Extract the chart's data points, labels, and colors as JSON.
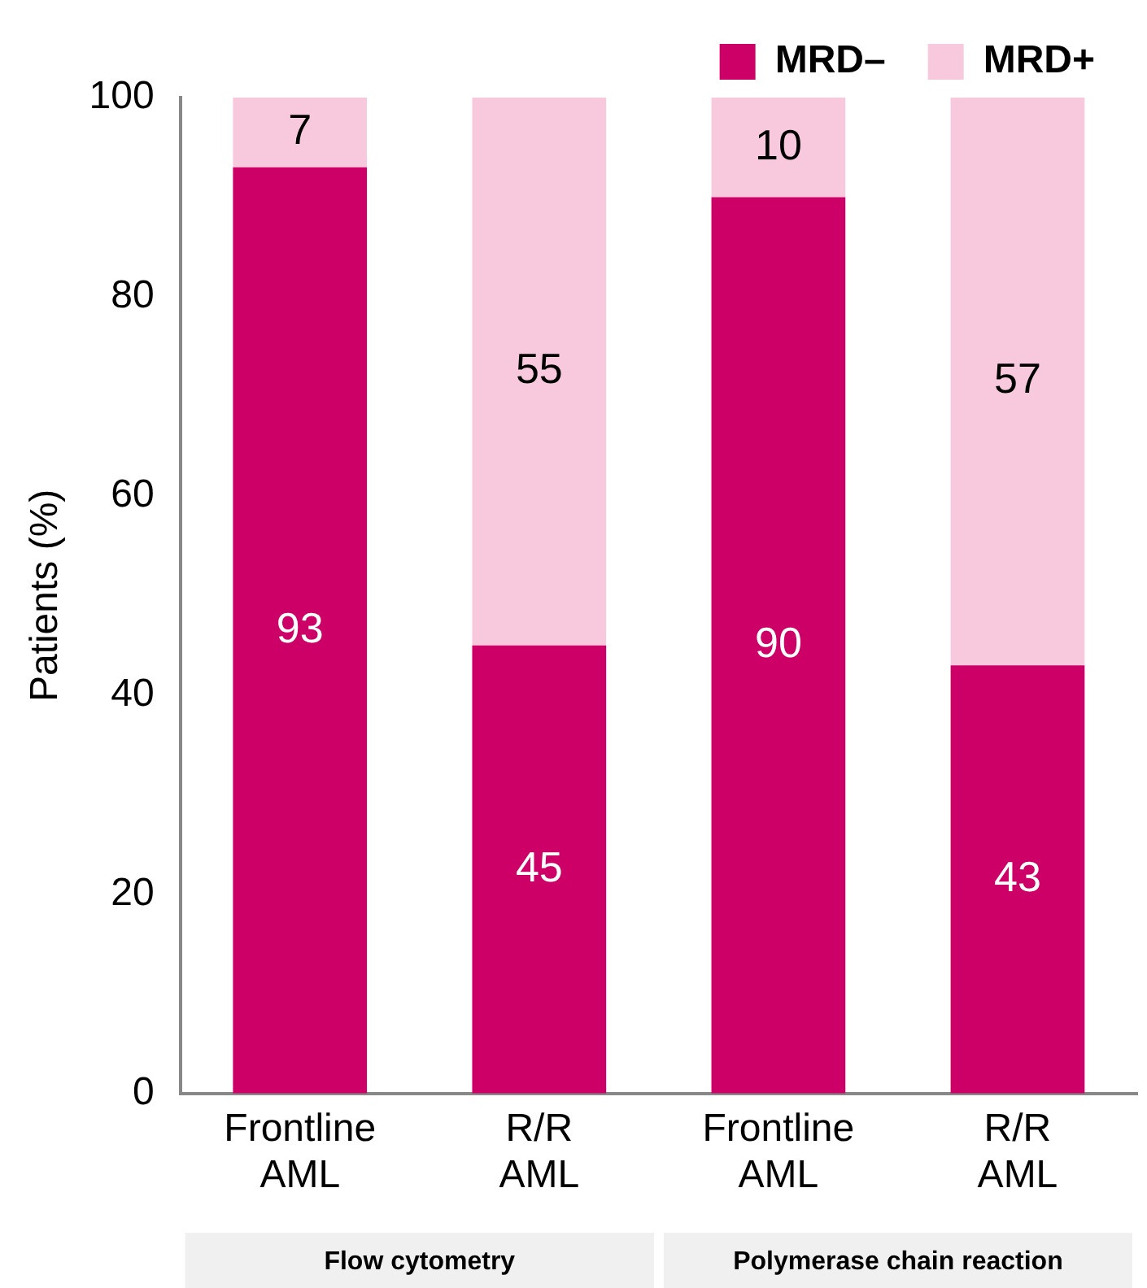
{
  "chart_data": {
    "type": "bar",
    "stacked": true,
    "ylabel": "Patients (%)",
    "categories": [
      "Frontline AML",
      "R/R AML",
      "Frontline AML",
      "R/R AML"
    ],
    "series": [
      {
        "name": "MRD–",
        "color": "#cc0066",
        "values": [
          93,
          45,
          90,
          43
        ]
      },
      {
        "name": "MRD+",
        "color": "#f8c9dc",
        "values": [
          7,
          55,
          10,
          57
        ]
      }
    ],
    "ylim": [
      0,
      100
    ],
    "yticks": [
      0,
      20,
      40,
      60,
      80,
      100
    ],
    "grid": false,
    "legend": "top right",
    "data_labels": true,
    "annotations": [
      "Flow cytometry",
      "Polymerase chain reaction"
    ]
  }
}
